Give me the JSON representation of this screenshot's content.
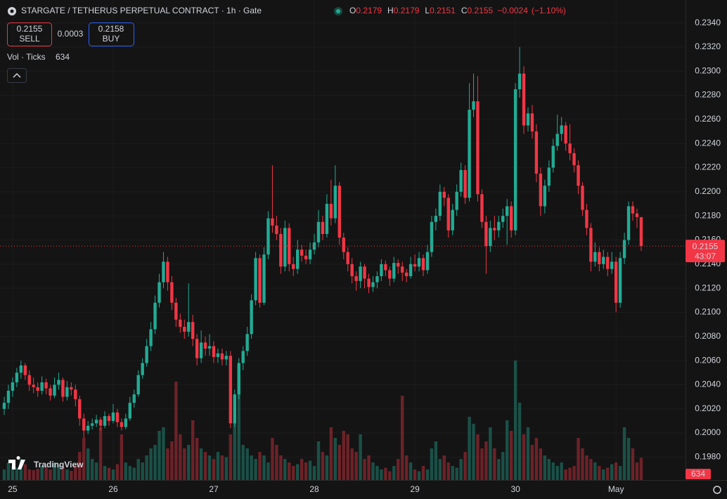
{
  "toolbar": {
    "sell_label": "SELL",
    "buy_label": "BUY",
    "buy_price": 0.2158,
    "spread": 0.0003
  },
  "chart_data": {
    "type": "candlestick",
    "title": "STARGATE / TETHERUS PERPETUAL CONTRACT · 1h · Gate",
    "ohlc_letters": [
      "O",
      "H",
      "L",
      "C"
    ],
    "change": {
      "value": -0.0024,
      "label": "−0.0024"
    },
    "change_pct": {
      "value": -1.1,
      "label": "(−1.10%)"
    },
    "volume_label": "Vol · Ticks",
    "countdown": "43:07",
    "logo": "TradingView",
    "up_color": "#22ab94",
    "down_color": "#f23645",
    "ylim": [
      0.1961,
      0.2359
    ],
    "yticks": [
      {
        "value": 0.198,
        "label": "0.1980"
      },
      {
        "value": 0.2,
        "label": "0.2000"
      },
      {
        "value": 0.202,
        "label": "0.2020"
      },
      {
        "value": 0.204,
        "label": "0.2040"
      },
      {
        "value": 0.206,
        "label": "0.2060"
      },
      {
        "value": 0.208,
        "label": "0.2080"
      },
      {
        "value": 0.21,
        "label": "0.2100"
      },
      {
        "value": 0.212,
        "label": "0.2120"
      },
      {
        "value": 0.214,
        "label": "0.2140"
      },
      {
        "value": 0.216,
        "label": "0.2160"
      },
      {
        "value": 0.218,
        "label": "0.2180"
      },
      {
        "value": 0.22,
        "label": "0.2200"
      },
      {
        "value": 0.222,
        "label": "0.2220"
      },
      {
        "value": 0.224,
        "label": "0.2240"
      },
      {
        "value": 0.226,
        "label": "0.2260"
      },
      {
        "value": 0.228,
        "label": "0.2280"
      },
      {
        "value": 0.23,
        "label": "0.2300"
      },
      {
        "value": 0.232,
        "label": "0.2320"
      },
      {
        "value": 0.234,
        "label": "0.2340"
      }
    ],
    "grid": true,
    "categories": [
      null,
      null,
      "25",
      null,
      null,
      null,
      null,
      null,
      null,
      null,
      null,
      null,
      null,
      null,
      null,
      null,
      null,
      null,
      null,
      null,
      null,
      null,
      null,
      null,
      null,
      null,
      "26",
      null,
      null,
      null,
      null,
      null,
      null,
      null,
      null,
      null,
      null,
      null,
      null,
      null,
      null,
      null,
      null,
      null,
      null,
      null,
      null,
      null,
      null,
      null,
      "27",
      null,
      null,
      null,
      null,
      null,
      null,
      null,
      null,
      null,
      null,
      null,
      null,
      null,
      null,
      null,
      null,
      null,
      null,
      null,
      null,
      null,
      null,
      null,
      "28",
      null,
      null,
      null,
      null,
      null,
      null,
      null,
      null,
      null,
      null,
      null,
      null,
      null,
      null,
      null,
      null,
      null,
      null,
      null,
      null,
      null,
      null,
      null,
      "29",
      null,
      null,
      null,
      null,
      null,
      null,
      null,
      null,
      null,
      null,
      null,
      null,
      null,
      null,
      null,
      null,
      null,
      null,
      null,
      null,
      null,
      null,
      null,
      "30",
      null,
      null,
      null,
      null,
      null,
      null,
      null,
      null,
      null,
      null,
      null,
      null,
      null,
      null,
      null,
      null,
      null,
      null,
      null,
      null,
      null,
      null,
      null,
      "May",
      null,
      null,
      null,
      null,
      null,
      null
    ],
    "candles": [
      [
        0.202,
        0.203,
        0.2015,
        0.2025
      ],
      [
        0.2025,
        0.204,
        0.202,
        0.2035
      ],
      [
        0.2035,
        0.2046,
        0.203,
        0.2042
      ],
      [
        0.2042,
        0.2054,
        0.2038,
        0.205
      ],
      [
        0.205,
        0.206,
        0.2045,
        0.2056
      ],
      [
        0.2056,
        0.2058,
        0.2044,
        0.2048
      ],
      [
        0.2048,
        0.2052,
        0.2035,
        0.204
      ],
      [
        0.204,
        0.2046,
        0.2033,
        0.2038
      ],
      [
        0.2038,
        0.2042,
        0.203,
        0.2035
      ],
      [
        0.2035,
        0.2047,
        0.2032,
        0.2042
      ],
      [
        0.2042,
        0.2045,
        0.2032,
        0.2037
      ],
      [
        0.2037,
        0.204,
        0.2027,
        0.2031
      ],
      [
        0.2031,
        0.2046,
        0.2029,
        0.204
      ],
      [
        0.204,
        0.205,
        0.2036,
        0.2044
      ],
      [
        0.2044,
        0.2046,
        0.2026,
        0.203
      ],
      [
        0.203,
        0.2043,
        0.2027,
        0.2038
      ],
      [
        0.2038,
        0.2042,
        0.2031,
        0.2036
      ],
      [
        0.2036,
        0.204,
        0.2022,
        0.2028
      ],
      [
        0.2028,
        0.2031,
        0.2006,
        0.2012
      ],
      [
        0.2012,
        0.2016,
        0.1996,
        0.2002
      ],
      [
        0.2002,
        0.201,
        0.1999,
        0.2006
      ],
      [
        0.2006,
        0.2012,
        0.2003,
        0.2008
      ],
      [
        0.2008,
        0.2015,
        0.2005,
        0.2011
      ],
      [
        0.2011,
        0.2013,
        0.2002,
        0.2006
      ],
      [
        0.2006,
        0.2018,
        0.2004,
        0.2014
      ],
      [
        0.2014,
        0.2016,
        0.2006,
        0.201
      ],
      [
        0.201,
        0.2024,
        0.2008,
        0.2017
      ],
      [
        0.2017,
        0.202,
        0.2005,
        0.2009
      ],
      [
        0.2009,
        0.2012,
        0.2002,
        0.2005
      ],
      [
        0.2005,
        0.2016,
        0.2003,
        0.2012
      ],
      [
        0.2012,
        0.203,
        0.201,
        0.2025
      ],
      [
        0.2025,
        0.2036,
        0.2021,
        0.2032
      ],
      [
        0.2032,
        0.2052,
        0.203,
        0.2048
      ],
      [
        0.2048,
        0.2062,
        0.2045,
        0.2058
      ],
      [
        0.2058,
        0.2078,
        0.2055,
        0.2072
      ],
      [
        0.2072,
        0.2092,
        0.2068,
        0.2086
      ],
      [
        0.2086,
        0.2114,
        0.2082,
        0.2108
      ],
      [
        0.2108,
        0.2132,
        0.2104,
        0.2125
      ],
      [
        0.2125,
        0.215,
        0.212,
        0.2142
      ],
      [
        0.2142,
        0.2146,
        0.2118,
        0.2125
      ],
      [
        0.2125,
        0.213,
        0.2102,
        0.2108
      ],
      [
        0.2108,
        0.2112,
        0.2088,
        0.2094
      ],
      [
        0.2094,
        0.2099,
        0.2083,
        0.2088
      ],
      [
        0.2088,
        0.2094,
        0.2078,
        0.2084
      ],
      [
        0.2084,
        0.2124,
        0.208,
        0.2092
      ],
      [
        0.2092,
        0.2098,
        0.2072,
        0.2078
      ],
      [
        0.2078,
        0.2082,
        0.2056,
        0.2062
      ],
      [
        0.2062,
        0.2085,
        0.2058,
        0.2075
      ],
      [
        0.2075,
        0.208,
        0.2064,
        0.207
      ],
      [
        0.207,
        0.2082,
        0.2064,
        0.2072
      ],
      [
        0.2072,
        0.2076,
        0.2058,
        0.2063
      ],
      [
        0.2063,
        0.207,
        0.2058,
        0.2066
      ],
      [
        0.2066,
        0.207,
        0.2056,
        0.2061
      ],
      [
        0.2061,
        0.2068,
        0.2056,
        0.2064
      ],
      [
        0.2064,
        0.2068,
        0.2004,
        0.2008
      ],
      [
        0.2008,
        0.2036,
        0.2005,
        0.2032
      ],
      [
        0.2032,
        0.2062,
        0.2028,
        0.2058
      ],
      [
        0.2058,
        0.2072,
        0.2052,
        0.2068
      ],
      [
        0.2068,
        0.2088,
        0.2064,
        0.2082
      ],
      [
        0.2082,
        0.2115,
        0.2078,
        0.211
      ],
      [
        0.211,
        0.215,
        0.2106,
        0.2145
      ],
      [
        0.2145,
        0.2148,
        0.2104,
        0.2108
      ],
      [
        0.2108,
        0.2154,
        0.2106,
        0.2148
      ],
      [
        0.2148,
        0.2184,
        0.2144,
        0.2178
      ],
      [
        0.2178,
        0.2222,
        0.2166,
        0.2172
      ],
      [
        0.2172,
        0.218,
        0.216,
        0.2165
      ],
      [
        0.2165,
        0.217,
        0.2132,
        0.2138
      ],
      [
        0.2138,
        0.2176,
        0.2134,
        0.217
      ],
      [
        0.217,
        0.2174,
        0.2134,
        0.214
      ],
      [
        0.214,
        0.2146,
        0.213,
        0.2136
      ],
      [
        0.2136,
        0.216,
        0.2132,
        0.2152
      ],
      [
        0.2152,
        0.2156,
        0.2142,
        0.2147
      ],
      [
        0.2147,
        0.2152,
        0.214,
        0.2144
      ],
      [
        0.2144,
        0.2158,
        0.214,
        0.2152
      ],
      [
        0.2152,
        0.2165,
        0.2148,
        0.2158
      ],
      [
        0.2158,
        0.2185,
        0.2154,
        0.2175
      ],
      [
        0.2175,
        0.218,
        0.216,
        0.2165
      ],
      [
        0.2165,
        0.2198,
        0.2162,
        0.219
      ],
      [
        0.219,
        0.221,
        0.2172,
        0.2178
      ],
      [
        0.2178,
        0.2222,
        0.2174,
        0.2205
      ],
      [
        0.2205,
        0.2208,
        0.2156,
        0.2162
      ],
      [
        0.2162,
        0.2166,
        0.2144,
        0.215
      ],
      [
        0.215,
        0.2154,
        0.2134,
        0.214
      ],
      [
        0.214,
        0.2145,
        0.2124,
        0.213
      ],
      [
        0.213,
        0.2134,
        0.2118,
        0.2126
      ],
      [
        0.2126,
        0.2142,
        0.212,
        0.2138
      ],
      [
        0.2138,
        0.214,
        0.212,
        0.2128
      ],
      [
        0.2128,
        0.2132,
        0.2116,
        0.2121
      ],
      [
        0.2121,
        0.213,
        0.2117,
        0.2125
      ],
      [
        0.2125,
        0.2134,
        0.212,
        0.213
      ],
      [
        0.213,
        0.2144,
        0.2126,
        0.214
      ],
      [
        0.214,
        0.2143,
        0.213,
        0.2135
      ],
      [
        0.2135,
        0.2138,
        0.2122,
        0.2128
      ],
      [
        0.2128,
        0.2146,
        0.2125,
        0.2141
      ],
      [
        0.2141,
        0.2144,
        0.2132,
        0.2138
      ],
      [
        0.2138,
        0.2142,
        0.2126,
        0.2133
      ],
      [
        0.2133,
        0.2136,
        0.2125,
        0.213
      ],
      [
        0.213,
        0.2146,
        0.2128,
        0.214
      ],
      [
        0.214,
        0.2148,
        0.2134,
        0.2138
      ],
      [
        0.2138,
        0.215,
        0.2134,
        0.2145
      ],
      [
        0.2145,
        0.2148,
        0.213,
        0.2135
      ],
      [
        0.2135,
        0.2156,
        0.2132,
        0.215
      ],
      [
        0.215,
        0.218,
        0.2146,
        0.2175
      ],
      [
        0.2175,
        0.2186,
        0.2168,
        0.218
      ],
      [
        0.218,
        0.2206,
        0.2176,
        0.22
      ],
      [
        0.22,
        0.2204,
        0.2188,
        0.2195
      ],
      [
        0.2195,
        0.2198,
        0.2162,
        0.2168
      ],
      [
        0.2168,
        0.219,
        0.2164,
        0.2185
      ],
      [
        0.2185,
        0.2206,
        0.218,
        0.22
      ],
      [
        0.22,
        0.2224,
        0.2196,
        0.2218
      ],
      [
        0.2218,
        0.2222,
        0.219,
        0.2195
      ],
      [
        0.2195,
        0.229,
        0.2192,
        0.2268
      ],
      [
        0.2268,
        0.2298,
        0.2262,
        0.2275
      ],
      [
        0.2275,
        0.2296,
        0.2192,
        0.2198
      ],
      [
        0.2198,
        0.2202,
        0.217,
        0.2175
      ],
      [
        0.2175,
        0.218,
        0.2132,
        0.2155
      ],
      [
        0.2155,
        0.2176,
        0.215,
        0.217
      ],
      [
        0.217,
        0.218,
        0.216,
        0.2168
      ],
      [
        0.2168,
        0.218,
        0.2162,
        0.2175
      ],
      [
        0.2175,
        0.2186,
        0.217,
        0.218
      ],
      [
        0.218,
        0.2194,
        0.2156,
        0.2188
      ],
      [
        0.2188,
        0.2192,
        0.2162,
        0.2168
      ],
      [
        0.2168,
        0.229,
        0.2164,
        0.2285
      ],
      [
        0.2285,
        0.232,
        0.2278,
        0.2298
      ],
      [
        0.2298,
        0.2304,
        0.2248,
        0.2255
      ],
      [
        0.2255,
        0.227,
        0.225,
        0.2265
      ],
      [
        0.2265,
        0.2272,
        0.2244,
        0.225
      ],
      [
        0.225,
        0.2256,
        0.2208,
        0.2215
      ],
      [
        0.2215,
        0.222,
        0.218,
        0.2188
      ],
      [
        0.2188,
        0.221,
        0.2182,
        0.2205
      ],
      [
        0.2205,
        0.2226,
        0.22,
        0.222
      ],
      [
        0.222,
        0.2244,
        0.2216,
        0.2238
      ],
      [
        0.2238,
        0.2264,
        0.2234,
        0.2248
      ],
      [
        0.2248,
        0.2262,
        0.2242,
        0.2255
      ],
      [
        0.2255,
        0.2258,
        0.2234,
        0.224
      ],
      [
        0.224,
        0.2256,
        0.2226,
        0.2232
      ],
      [
        0.2232,
        0.2236,
        0.2216,
        0.2222
      ],
      [
        0.2222,
        0.2226,
        0.2198,
        0.2205
      ],
      [
        0.2205,
        0.2208,
        0.218,
        0.2185
      ],
      [
        0.2185,
        0.219,
        0.2164,
        0.217
      ],
      [
        0.217,
        0.2174,
        0.2134,
        0.2142
      ],
      [
        0.2142,
        0.2158,
        0.2138,
        0.215
      ],
      [
        0.215,
        0.2154,
        0.2134,
        0.214
      ],
      [
        0.214,
        0.2152,
        0.2136,
        0.2146
      ],
      [
        0.2146,
        0.215,
        0.213,
        0.2136
      ],
      [
        0.2136,
        0.215,
        0.2132,
        0.2142
      ],
      [
        0.2142,
        0.2146,
        0.21,
        0.2108
      ],
      [
        0.2108,
        0.215,
        0.2104,
        0.2145
      ],
      [
        0.2145,
        0.2166,
        0.214,
        0.216
      ],
      [
        0.216,
        0.2192,
        0.2156,
        0.2188
      ],
      [
        0.2188,
        0.2192,
        0.2176,
        0.2182
      ],
      [
        0.2182,
        0.2186,
        0.217,
        0.2179
      ],
      [
        0.2179,
        0.2179,
        0.2151,
        0.2155
      ]
    ],
    "volume": [
      300,
      500,
      400,
      350,
      600,
      450,
      300,
      280,
      320,
      400,
      350,
      300,
      500,
      420,
      380,
      300,
      260,
      400,
      800,
      1200,
      900,
      600,
      500,
      1500,
      400,
      350,
      300,
      450,
      1300,
      500,
      400,
      350,
      600,
      500,
      700,
      900,
      1000,
      1400,
      1500,
      900,
      1100,
      2800,
      1300,
      900,
      1000,
      1700,
      1200,
      900,
      800,
      700,
      600,
      800,
      700,
      650,
      1300,
      1700,
      3000,
      1000,
      900,
      700,
      600,
      800,
      700,
      500,
      1200,
      1000,
      700,
      600,
      500,
      400,
      450,
      600,
      500,
      550,
      400,
      1100,
      800,
      700,
      1500,
      1200,
      1000,
      1400,
      1300,
      900,
      800,
      1300,
      600,
      700,
      500,
      400,
      300,
      350,
      250,
      400,
      600,
      2400,
      700,
      500,
      300,
      250,
      400,
      300,
      900,
      1100,
      600,
      700,
      500,
      400,
      350,
      600,
      800,
      1800,
      1600,
      1300,
      900,
      1100,
      1500,
      900,
      600,
      800,
      1700,
      1400,
      3400,
      2200,
      1300,
      1500,
      1000,
      1200,
      900,
      700,
      600,
      500,
      400,
      500,
      300,
      350,
      400,
      1200,
      900,
      700,
      600,
      500,
      400,
      300,
      350,
      450,
      500,
      400,
      1500,
      1200,
      900,
      500,
      634
    ]
  }
}
